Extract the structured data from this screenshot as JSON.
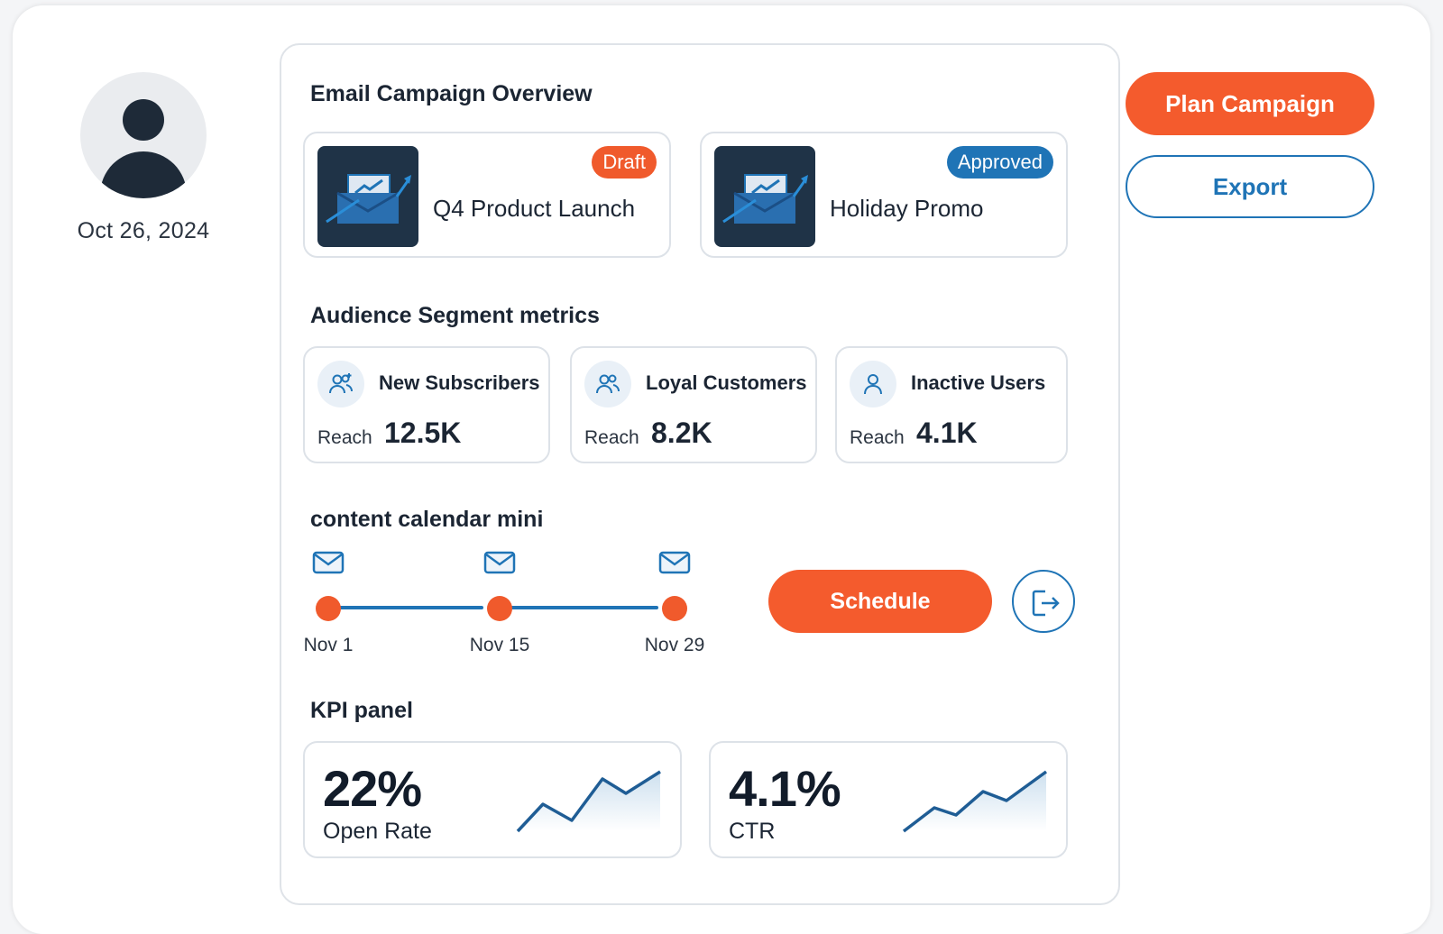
{
  "profile": {
    "date": "Oct 26, 2024"
  },
  "overview": {
    "title": "Email Campaign Overview",
    "campaigns": [
      {
        "name": "Q4 Product Launch",
        "status": "Draft",
        "thumbnail_icon": "email-growth-icon"
      },
      {
        "name": "Holiday Promo",
        "status": "Approved",
        "thumbnail_icon": "email-growth-icon"
      }
    ]
  },
  "segments": {
    "title": "Audience Segment metrics",
    "reach_label": "Reach",
    "items": [
      {
        "name": "New Subscribers",
        "reach": "12.5K",
        "icon": "users-plus-icon"
      },
      {
        "name": "Loyal Customers",
        "reach": "8.2K",
        "icon": "users-icon"
      },
      {
        "name": "Inactive Users",
        "reach": "4.1K",
        "icon": "user-icon"
      }
    ]
  },
  "calendar": {
    "title": "content calendar mini",
    "dates": [
      "Nov 1",
      "Nov 15",
      "Nov 29"
    ],
    "schedule_label": "Schedule",
    "exit_icon": "logout-icon"
  },
  "kpi": {
    "title": "KPI panel",
    "items": [
      {
        "value": "22%",
        "label": "Open Rate"
      },
      {
        "value": "4.1%",
        "label": "CTR"
      }
    ]
  },
  "actions": {
    "plan_label": "Plan Campaign",
    "export_label": "Export"
  },
  "colors": {
    "accent_orange": "#f45b2d",
    "accent_blue": "#1f74b6",
    "navy": "#1f3347"
  }
}
